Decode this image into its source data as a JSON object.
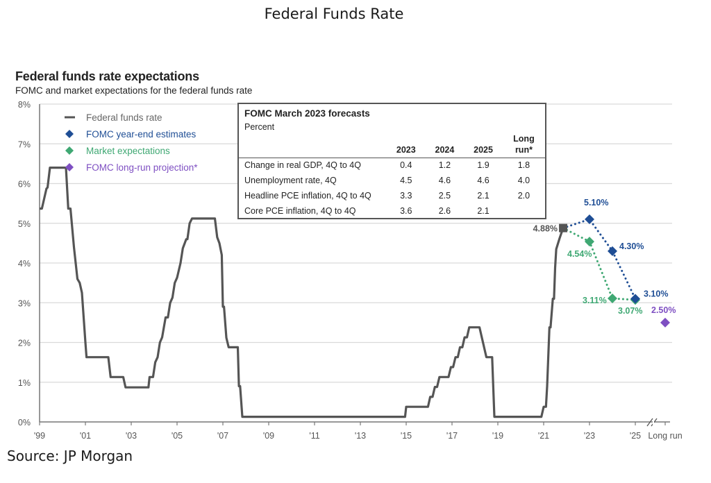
{
  "page_title": "Federal Funds Rate",
  "source_label": "Source:",
  "source_value": "JP Morgan",
  "chart_data": {
    "type": "line",
    "title": "Federal funds rate expectations",
    "subtitle": "FOMC and market expectations for the federal funds rate",
    "xlabel": "",
    "ylabel": "",
    "ylim": [
      0,
      8
    ],
    "xlim": [
      1999,
      2026.3
    ],
    "grid": true,
    "yticks": [
      "0%",
      "1%",
      "2%",
      "3%",
      "4%",
      "5%",
      "6%",
      "7%",
      "8%"
    ],
    "xticks": [
      {
        "x": 1999,
        "label": "'99"
      },
      {
        "x": 2001,
        "label": "'01"
      },
      {
        "x": 2003,
        "label": "'03"
      },
      {
        "x": 2005,
        "label": "'05"
      },
      {
        "x": 2007,
        "label": "'07"
      },
      {
        "x": 2009,
        "label": "'09"
      },
      {
        "x": 2011,
        "label": "'11"
      },
      {
        "x": 2013,
        "label": "'13"
      },
      {
        "x": 2015,
        "label": "'15"
      },
      {
        "x": 2017,
        "label": "'17"
      },
      {
        "x": 2019,
        "label": "'19"
      },
      {
        "x": 2021,
        "label": "'21"
      },
      {
        "x": 2023,
        "label": "'23"
      },
      {
        "x": 2025,
        "label": "'25"
      },
      {
        "x": 2026.3,
        "label": "Long run"
      }
    ],
    "legend": {
      "placement": "top-left",
      "entries": [
        {
          "name": "Federal funds rate",
          "marker": "line",
          "color": "#555555"
        },
        {
          "name": "FOMC year-end estimates",
          "marker": "diamond",
          "color": "#1f4e95"
        },
        {
          "name": "Market expectations",
          "marker": "diamond",
          "color": "#3fa873"
        },
        {
          "name": "FOMC long-run projection*",
          "marker": "diamond",
          "color": "#7e4fc2"
        }
      ]
    },
    "series": [
      {
        "name": "Federal funds rate",
        "color": "#555555",
        "style": "solid-step",
        "points": [
          [
            1999.0,
            5.37
          ],
          [
            1999.1,
            5.37
          ],
          [
            1999.2,
            5.62
          ],
          [
            1999.3,
            5.87
          ],
          [
            1999.35,
            5.9
          ],
          [
            1999.45,
            6.4
          ],
          [
            2000.15,
            6.4
          ],
          [
            2000.25,
            5.37
          ],
          [
            2000.35,
            5.37
          ],
          [
            2000.5,
            4.4
          ],
          [
            2000.65,
            3.6
          ],
          [
            2000.75,
            3.5
          ],
          [
            2000.85,
            3.25
          ],
          [
            2001.0,
            2.0
          ],
          [
            2001.05,
            1.63
          ],
          [
            2002.0,
            1.63
          ],
          [
            2002.1,
            1.13
          ],
          [
            2002.65,
            1.13
          ],
          [
            2002.75,
            0.87
          ],
          [
            2003.75,
            0.87
          ],
          [
            2003.8,
            1.13
          ],
          [
            2003.95,
            1.13
          ],
          [
            2004.05,
            1.5
          ],
          [
            2004.15,
            1.63
          ],
          [
            2004.25,
            2.0
          ],
          [
            2004.35,
            2.13
          ],
          [
            2004.5,
            2.63
          ],
          [
            2004.6,
            2.63
          ],
          [
            2004.7,
            3.0
          ],
          [
            2004.8,
            3.13
          ],
          [
            2004.9,
            3.5
          ],
          [
            2005.0,
            3.63
          ],
          [
            2005.15,
            4.0
          ],
          [
            2005.25,
            4.37
          ],
          [
            2005.4,
            4.6
          ],
          [
            2005.45,
            4.6
          ],
          [
            2005.55,
            5.0
          ],
          [
            2005.65,
            5.12
          ],
          [
            2006.65,
            5.12
          ],
          [
            2006.75,
            4.65
          ],
          [
            2006.85,
            4.5
          ],
          [
            2006.95,
            4.2
          ],
          [
            2007.0,
            2.9
          ],
          [
            2007.05,
            2.9
          ],
          [
            2007.15,
            2.12
          ],
          [
            2007.25,
            1.88
          ],
          [
            2007.65,
            1.88
          ],
          [
            2007.7,
            0.9
          ],
          [
            2007.75,
            0.9
          ],
          [
            2007.85,
            0.13
          ],
          [
            2014.95,
            0.13
          ],
          [
            2015.0,
            0.38
          ],
          [
            2015.95,
            0.38
          ],
          [
            2016.05,
            0.63
          ],
          [
            2016.15,
            0.63
          ],
          [
            2016.25,
            0.88
          ],
          [
            2016.35,
            0.88
          ],
          [
            2016.45,
            1.13
          ],
          [
            2016.85,
            1.13
          ],
          [
            2016.95,
            1.38
          ],
          [
            2017.05,
            1.38
          ],
          [
            2017.15,
            1.63
          ],
          [
            2017.25,
            1.63
          ],
          [
            2017.35,
            1.88
          ],
          [
            2017.45,
            1.88
          ],
          [
            2017.55,
            2.13
          ],
          [
            2017.65,
            2.13
          ],
          [
            2017.75,
            2.38
          ],
          [
            2018.2,
            2.38
          ],
          [
            2018.3,
            2.13
          ],
          [
            2018.4,
            1.88
          ],
          [
            2018.5,
            1.63
          ],
          [
            2018.75,
            1.63
          ],
          [
            2018.85,
            0.13
          ],
          [
            2020.9,
            0.13
          ],
          [
            2021.0,
            0.38
          ],
          [
            2021.1,
            0.38
          ],
          [
            2021.15,
            0.9
          ],
          [
            2021.25,
            2.38
          ],
          [
            2021.3,
            2.38
          ],
          [
            2021.4,
            3.1
          ],
          [
            2021.45,
            3.1
          ],
          [
            2021.5,
            3.88
          ],
          [
            2021.55,
            4.35
          ],
          [
            2021.7,
            4.63
          ],
          [
            2021.85,
            4.88
          ]
        ]
      },
      {
        "name": "FOMC year-end estimates",
        "color": "#1f4e95",
        "style": "dotted",
        "points": [
          [
            2021.85,
            4.88
          ],
          [
            2023.0,
            5.1
          ],
          [
            2024.0,
            4.3
          ],
          [
            2025.0,
            3.1
          ]
        ],
        "labels": [
          "",
          "5.10%",
          "4.30%",
          "3.10%"
        ]
      },
      {
        "name": "Market expectations",
        "color": "#3fa873",
        "style": "dotted",
        "points": [
          [
            2021.85,
            4.88
          ],
          [
            2023.0,
            4.54
          ],
          [
            2024.0,
            3.11
          ],
          [
            2025.0,
            3.07
          ]
        ],
        "labels": [
          "",
          "4.54%",
          "3.11%",
          "3.07%"
        ]
      },
      {
        "name": "FOMC long-run projection*",
        "color": "#7e4fc2",
        "style": "marker",
        "points": [
          [
            2026.3,
            2.5
          ]
        ],
        "labels": [
          "2.50%"
        ]
      }
    ],
    "annotations": [
      {
        "text": "4.88%",
        "x": 2021.85,
        "y": 4.88,
        "color": "#555555",
        "note": "current rate marker (square)"
      }
    ],
    "inset_table": {
      "title": "FOMC March 2023 forecasts",
      "unit": "Percent",
      "columns": [
        "2023",
        "2024",
        "2025",
        "Long run*"
      ],
      "columns_line1": [
        "2023",
        "2024",
        "2025",
        "Long"
      ],
      "columns_line2": [
        "",
        "",
        "",
        "run*"
      ],
      "rows": [
        {
          "label": "Change in real GDP, 4Q to 4Q",
          "values": [
            "0.4",
            "1.2",
            "1.9",
            "1.8"
          ]
        },
        {
          "label": "Unemployment rate, 4Q",
          "values": [
            "4.5",
            "4.6",
            "4.6",
            "4.0"
          ]
        },
        {
          "label": "Headline PCE inflation, 4Q to 4Q",
          "values": [
            "3.3",
            "2.5",
            "2.1",
            "2.0"
          ]
        },
        {
          "label": "Core PCE inflation, 4Q to 4Q",
          "values": [
            "3.6",
            "2.6",
            "2.1",
            ""
          ]
        }
      ]
    }
  }
}
